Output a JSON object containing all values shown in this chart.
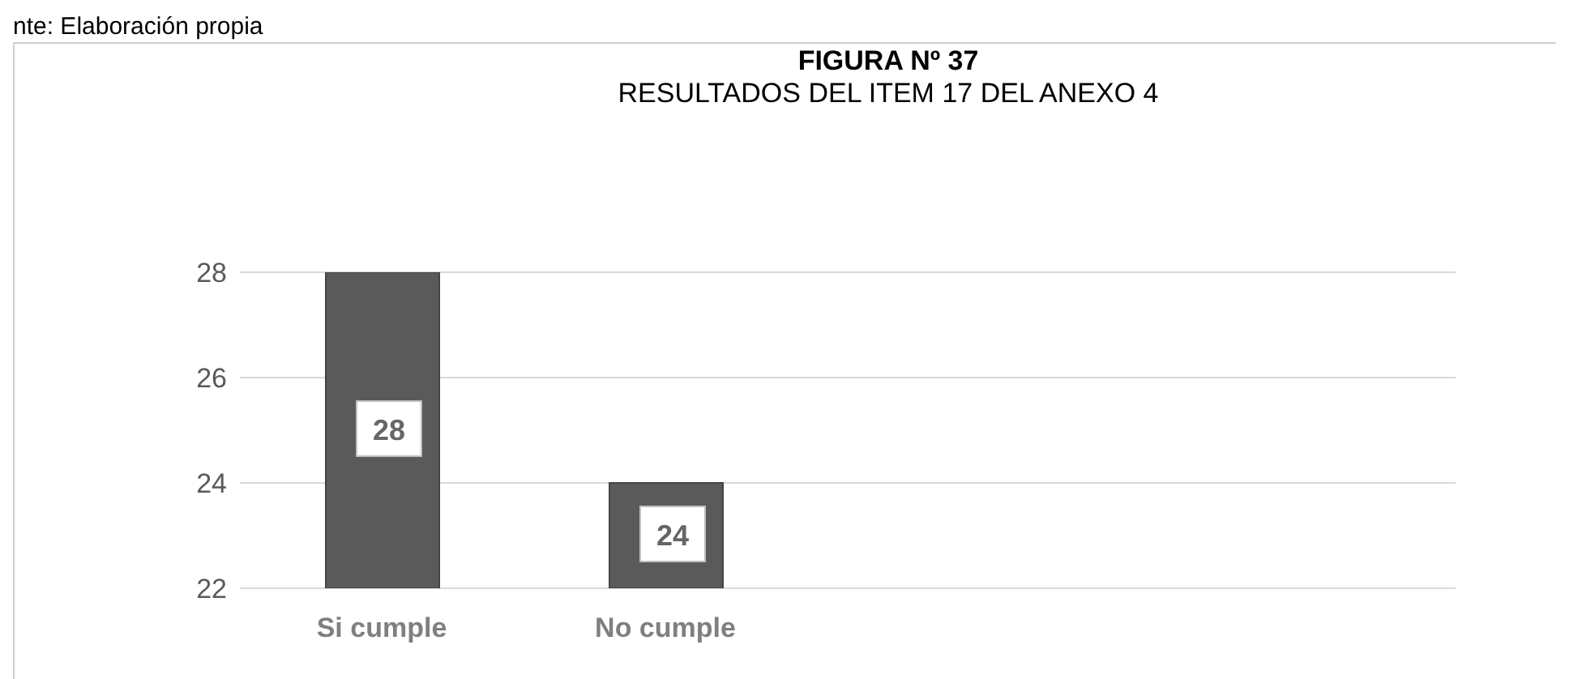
{
  "chart_data": {
    "type": "bar",
    "title": "FIGURA Nº 37",
    "subtitle": "RESULTADOS DEL ITEM 17 DEL ANEXO 4",
    "annotations": [
      "nte: Elaboración propia"
    ],
    "categories": [
      "Si cumple",
      "No cumple"
    ],
    "values": [
      28,
      24
    ],
    "color": "#5a5a5a",
    "ylim": [
      22,
      28
    ],
    "yticks": [
      22,
      24,
      26,
      28
    ],
    "grid": "y",
    "data_labels": true
  }
}
